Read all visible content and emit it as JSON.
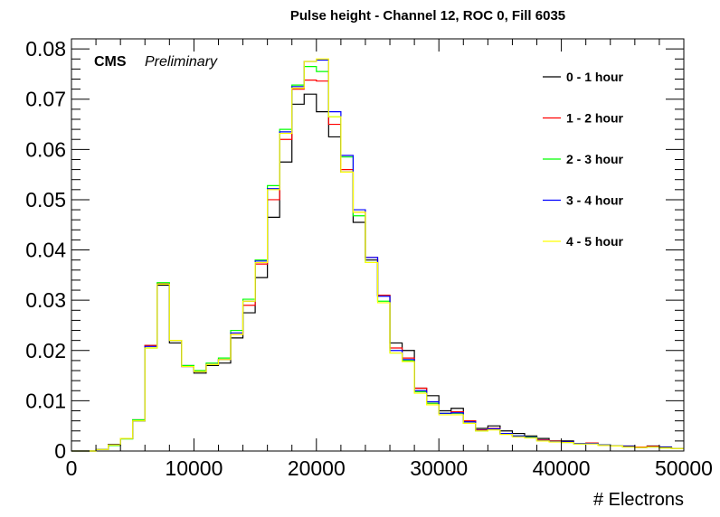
{
  "chart_data": {
    "type": "histogram",
    "title": "Pulse height - Channel 12, ROC 0, Fill 6035",
    "xlabel": "# Electrons",
    "ylabel": "",
    "xlim": [
      0,
      50000
    ],
    "ylim": [
      0,
      0.082
    ],
    "x_ticks": [
      "0",
      "10000",
      "20000",
      "30000",
      "40000",
      "50000"
    ],
    "y_ticks": [
      "0",
      "0.01",
      "0.02",
      "0.03",
      "0.04",
      "0.05",
      "0.06",
      "0.07",
      "0.08"
    ],
    "annotation": {
      "cms": "CMS",
      "preliminary": "Preliminary"
    },
    "bin_width": 1000,
    "bin_edges_start": 0,
    "legend_position": "top-right",
    "series": [
      {
        "name": "0 - 1 hour",
        "color": "#000000",
        "values": [
          0,
          0,
          0.0003,
          0.0013,
          0.0025,
          0.006,
          0.021,
          0.033,
          0.0215,
          0.017,
          0.0155,
          0.017,
          0.0175,
          0.0225,
          0.0275,
          0.0345,
          0.0465,
          0.0575,
          0.069,
          0.071,
          0.0675,
          0.0625,
          0.0555,
          0.0455,
          0.038,
          0.031,
          0.0215,
          0.02,
          0.0125,
          0.011,
          0.008,
          0.0085,
          0.006,
          0.0045,
          0.005,
          0.004,
          0.0035,
          0.003,
          0.0025,
          0.002,
          0.002,
          0.0015,
          0.0015,
          0.0012,
          0.001,
          0.001,
          0.0008,
          0.001,
          0.0008,
          0.0005
        ]
      },
      {
        "name": "1 - 2 hour",
        "color": "#ff0000",
        "values": [
          0,
          0,
          0.0003,
          0.0012,
          0.0025,
          0.0062,
          0.021,
          0.0333,
          0.022,
          0.0168,
          0.0158,
          0.0172,
          0.0182,
          0.0232,
          0.029,
          0.0372,
          0.05,
          0.062,
          0.072,
          0.0738,
          0.0736,
          0.065,
          0.056,
          0.0475,
          0.0385,
          0.031,
          0.0205,
          0.0185,
          0.0125,
          0.0095,
          0.0075,
          0.0078,
          0.006,
          0.0042,
          0.0045,
          0.0035,
          0.003,
          0.0028,
          0.0022,
          0.002,
          0.0018,
          0.0015,
          0.0016,
          0.0012,
          0.001,
          0.0009,
          0.0008,
          0.0009,
          0.0007,
          0.0005
        ]
      },
      {
        "name": "2 - 3 hour",
        "color": "#00ff00",
        "values": [
          0,
          0,
          0.0003,
          0.0011,
          0.0024,
          0.0062,
          0.0205,
          0.0335,
          0.022,
          0.017,
          0.016,
          0.0175,
          0.0185,
          0.024,
          0.0302,
          0.038,
          0.0528,
          0.064,
          0.0728,
          0.0765,
          0.0755,
          0.0665,
          0.0585,
          0.0468,
          0.0375,
          0.0298,
          0.0195,
          0.018,
          0.0118,
          0.0095,
          0.0075,
          0.0075,
          0.0055,
          0.004,
          0.0043,
          0.0034,
          0.003,
          0.0028,
          0.002,
          0.0019,
          0.0017,
          0.0014,
          0.0015,
          0.0012,
          0.001,
          0.0008,
          0.0007,
          0.0008,
          0.0006,
          0.0005
        ]
      },
      {
        "name": "3 - 4 hour",
        "color": "#0000ff",
        "values": [
          0,
          0,
          0.0003,
          0.0012,
          0.0025,
          0.006,
          0.0208,
          0.0332,
          0.022,
          0.0168,
          0.0158,
          0.0172,
          0.0182,
          0.0235,
          0.0298,
          0.0378,
          0.0522,
          0.0635,
          0.0725,
          0.0775,
          0.0778,
          0.0675,
          0.0588,
          0.048,
          0.0385,
          0.0308,
          0.02,
          0.0182,
          0.012,
          0.0098,
          0.0075,
          0.0076,
          0.0058,
          0.0041,
          0.0044,
          0.0035,
          0.003,
          0.0027,
          0.0021,
          0.0019,
          0.0018,
          0.0015,
          0.0015,
          0.0012,
          0.001,
          0.0009,
          0.0007,
          0.0008,
          0.0007,
          0.0005
        ]
      },
      {
        "name": "4 - 5 hour",
        "color": "#ffff00",
        "values": [
          0,
          0,
          0.0003,
          0.0012,
          0.0025,
          0.006,
          0.0205,
          0.0332,
          0.022,
          0.0168,
          0.0158,
          0.0172,
          0.0182,
          0.0232,
          0.0298,
          0.0375,
          0.052,
          0.0632,
          0.0722,
          0.0775,
          0.078,
          0.0665,
          0.0555,
          0.0475,
          0.0375,
          0.0295,
          0.0195,
          0.0178,
          0.0115,
          0.0092,
          0.0072,
          0.0072,
          0.0055,
          0.004,
          0.0042,
          0.0033,
          0.0028,
          0.0026,
          0.002,
          0.0018,
          0.0017,
          0.0014,
          0.0014,
          0.0011,
          0.001,
          0.0008,
          0.0007,
          0.0008,
          0.0006,
          0.0005
        ]
      }
    ]
  }
}
